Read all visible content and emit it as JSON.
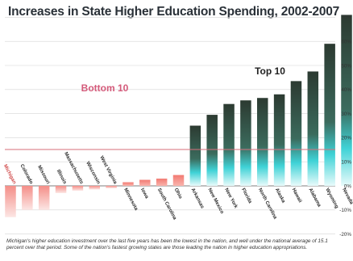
{
  "chart_data": {
    "type": "bar",
    "title": "Increases in State Higher Education Spending, 2002-2007",
    "categories": [
      "Michigan",
      "Colorado",
      "Missouri",
      "Illinois",
      "Massachusetts",
      "Wisconsin",
      "West Virginia",
      "Minnesota",
      "Iowa",
      "South Carolina",
      "Ohio",
      "Arkansas",
      "New Mexico",
      "New York",
      "Florida",
      "North Carolina",
      "Alaska",
      "Hawaii",
      "Alabama",
      "Wyoming",
      "Nevada"
    ],
    "values": [
      -13,
      -10,
      -10,
      -3,
      -2,
      -1.5,
      -1,
      1.5,
      2.5,
      3,
      4.5,
      25,
      29.5,
      34,
      35.5,
      36.5,
      38,
      43.5,
      47.5,
      59,
      71
    ],
    "groups": {
      "bottom_label": "Bottom 10",
      "top_label": "Top 10"
    },
    "average_line": 15.1,
    "highlight_category": "Michigan",
    "yticks": [
      "-20%",
      "-10%",
      "0%",
      "10%",
      "20%",
      "30%",
      "40%",
      "50%",
      "60%",
      "70%"
    ],
    "ylim": [
      -20,
      72
    ],
    "caption": "Michigan's higher education investment over the last five years has been the lowest in the nation, and well under the national average of 15.1 percent over that period. Some of the nation's fastest growing states are those leading the nation in higher education appropriations.",
    "colors": {
      "negative": "#f08a86",
      "bottom_positive": "#f4837a",
      "top_dark": "#2f4035",
      "top_teal": "#3fd2d6",
      "average_line": "#d76f7a",
      "bottom_label": "#d45a7a",
      "top_label": "#222222",
      "highlight_label": "#d04a4a"
    }
  }
}
